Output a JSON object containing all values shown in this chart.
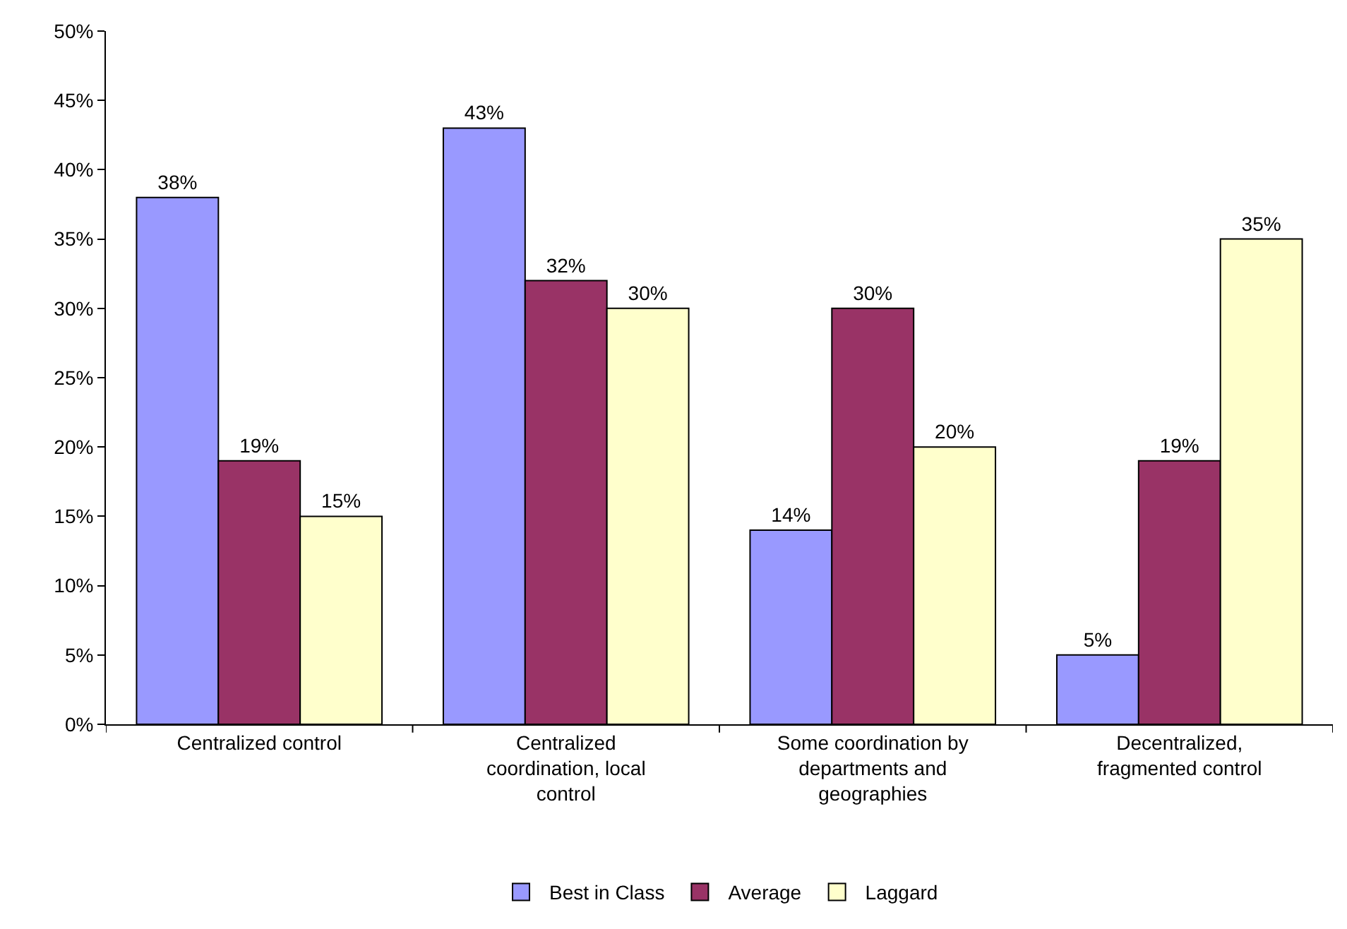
{
  "chart_data": {
    "type": "bar",
    "categories": [
      "Centralized control",
      "Centralized coordination, local control",
      "Some coordination by departments and geographies",
      "Decentralized, fragmented control"
    ],
    "series": [
      {
        "name": "Best in Class",
        "color": "#9999ff",
        "values": [
          38,
          43,
          14,
          5
        ],
        "value_labels": [
          "38%",
          "43%",
          "14%",
          "5%"
        ]
      },
      {
        "name": "Average",
        "color": "#993366",
        "values": [
          19,
          32,
          30,
          19
        ],
        "value_labels": [
          "19%",
          "32%",
          "30%",
          "19%"
        ]
      },
      {
        "name": "Laggard",
        "color": "#ffffcc",
        "values": [
          15,
          30,
          20,
          35
        ],
        "value_labels": [
          "15%",
          "30%",
          "20%",
          "35%"
        ]
      }
    ],
    "ylim": [
      0,
      50
    ],
    "yticks": [
      {
        "value": 0,
        "label": "0%"
      },
      {
        "value": 5,
        "label": "5%"
      },
      {
        "value": 10,
        "label": "10%"
      },
      {
        "value": 15,
        "label": "15%"
      },
      {
        "value": 20,
        "label": "20%"
      },
      {
        "value": 25,
        "label": "25%"
      },
      {
        "value": 30,
        "label": "30%"
      },
      {
        "value": 35,
        "label": "35%"
      },
      {
        "value": 40,
        "label": "40%"
      },
      {
        "value": 45,
        "label": "45%"
      },
      {
        "value": 50,
        "label": "50%"
      }
    ],
    "grid": false,
    "legend": "bottom"
  }
}
